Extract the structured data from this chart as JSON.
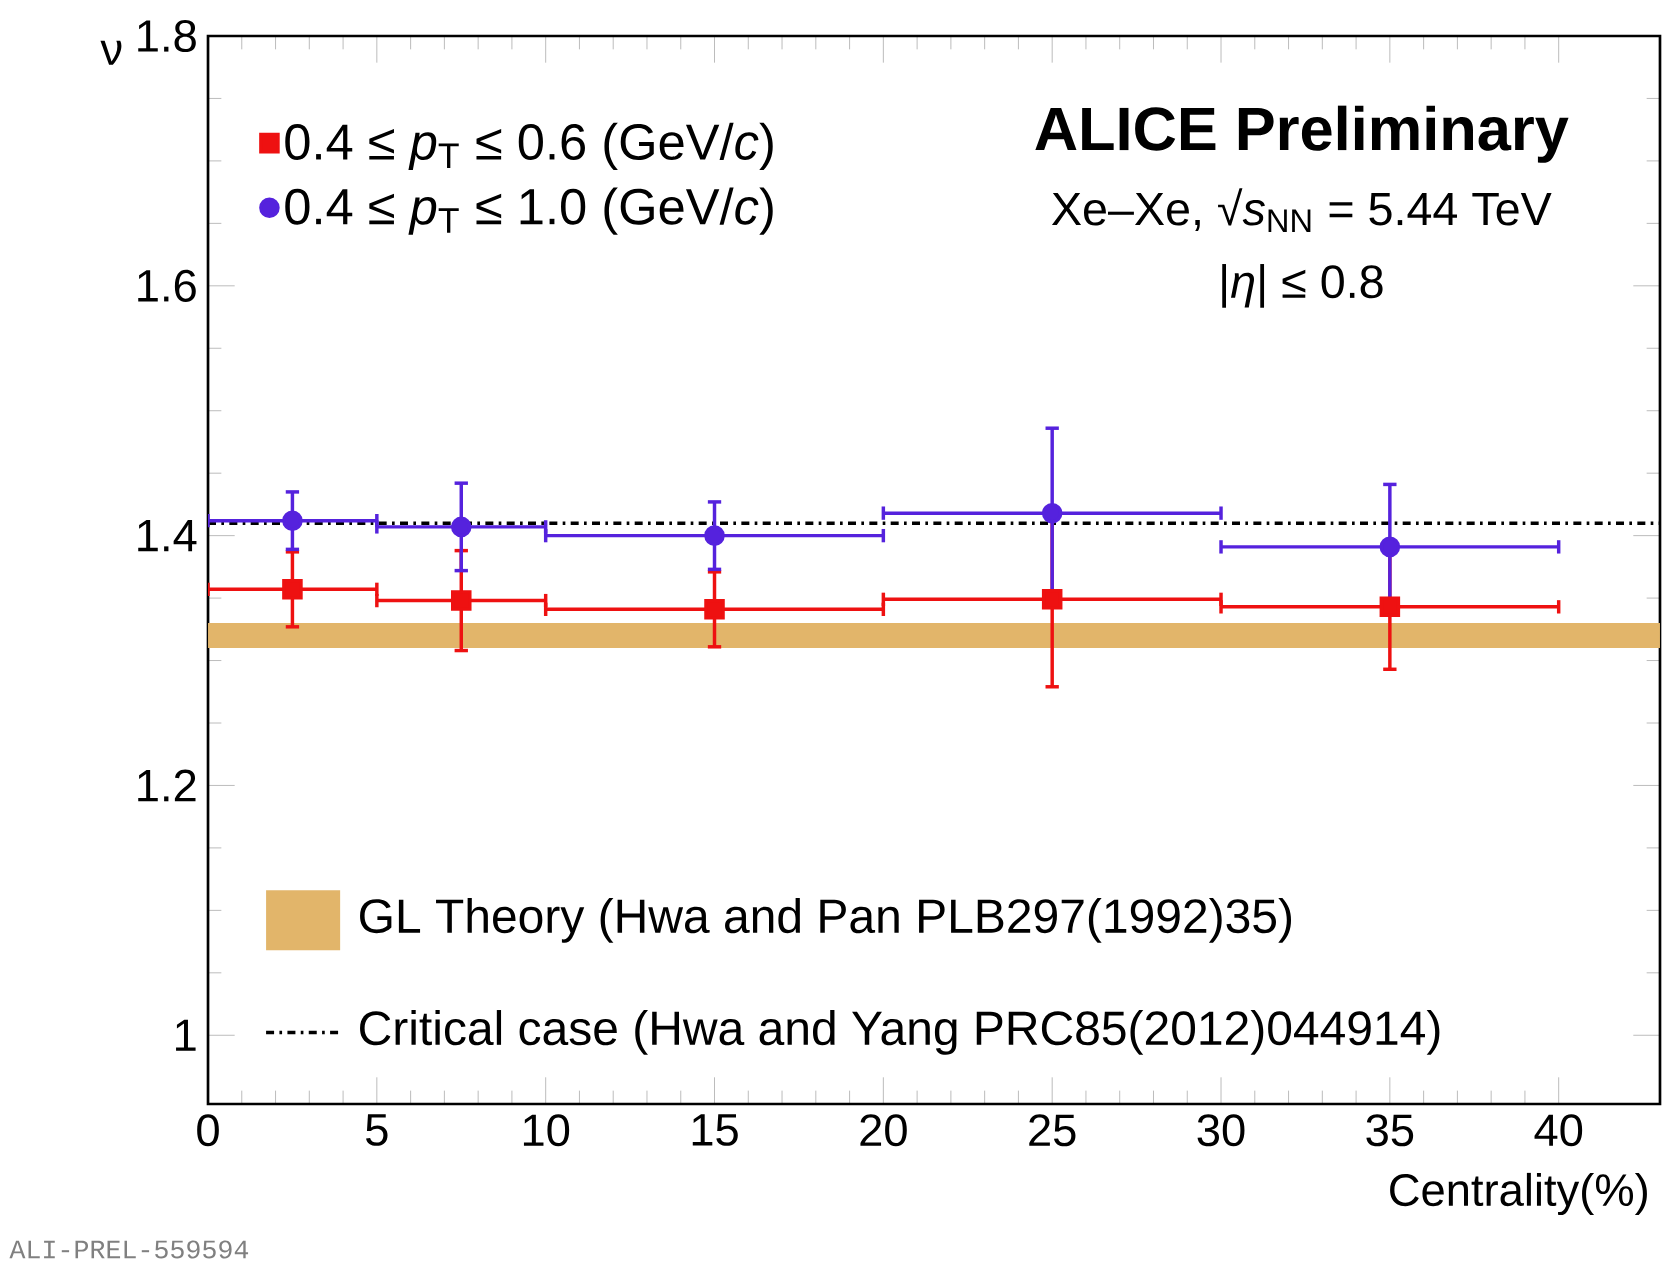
{
  "chart_data": {
    "type": "scatter",
    "xlabel": "Centrality(%)",
    "ylabel": "ν",
    "x": [
      2.5,
      7.5,
      15,
      25,
      35
    ],
    "series": [
      {
        "name": "0.4 ≤ *p*$_{T}$ ≤ 0.6 (GeV/*c*)",
        "color": "#ee1111",
        "marker": "square",
        "values": [
          1.357,
          1.348,
          1.341,
          1.349,
          1.343
        ],
        "errors": [
          0.03,
          0.04,
          0.03,
          0.07,
          0.05
        ],
        "xerrors": [
          2.5,
          2.5,
          5,
          5,
          5
        ]
      },
      {
        "name": "0.4 ≤ *p*$_{T}$ ≤ 1.0 (GeV/*c*)",
        "color": "#5522dd",
        "marker": "circle",
        "values": [
          1.412,
          1.407,
          1.4,
          1.418,
          1.391
        ],
        "errors": [
          0.023,
          0.035,
          0.027,
          0.068,
          0.05
        ],
        "xerrors": [
          2.5,
          2.5,
          5,
          5,
          5
        ]
      }
    ],
    "xlim": [
      0,
      43
    ],
    "ylim": [
      0.945,
      1.8
    ],
    "xticks": [
      0,
      5,
      10,
      15,
      20,
      25,
      30,
      35,
      40
    ],
    "yticks": [
      1,
      1.2,
      1.4,
      1.6,
      1.8
    ],
    "bands": [
      {
        "axis": "y",
        "from": 1.31,
        "to": 1.33,
        "label": "GL Theory (Hwa and Pan PLB297(1992)35)",
        "color": "#e2b56a"
      }
    ],
    "ref_lines": [
      {
        "axis": "y",
        "value": 1.41,
        "label": "Critical case (Hwa and Yang PRC85(2012)044914)",
        "color": "#000000",
        "line_style": "dashdotted"
      }
    ],
    "annotations": [
      "ALICE Preliminary",
      "Xe–Xe, √*s*$_{NN}$ = 5.44 TeV",
      "|*η*| ≤ 0.8",
      "ALI-PREL-559594"
    ],
    "legend": "left",
    "grid": false
  }
}
